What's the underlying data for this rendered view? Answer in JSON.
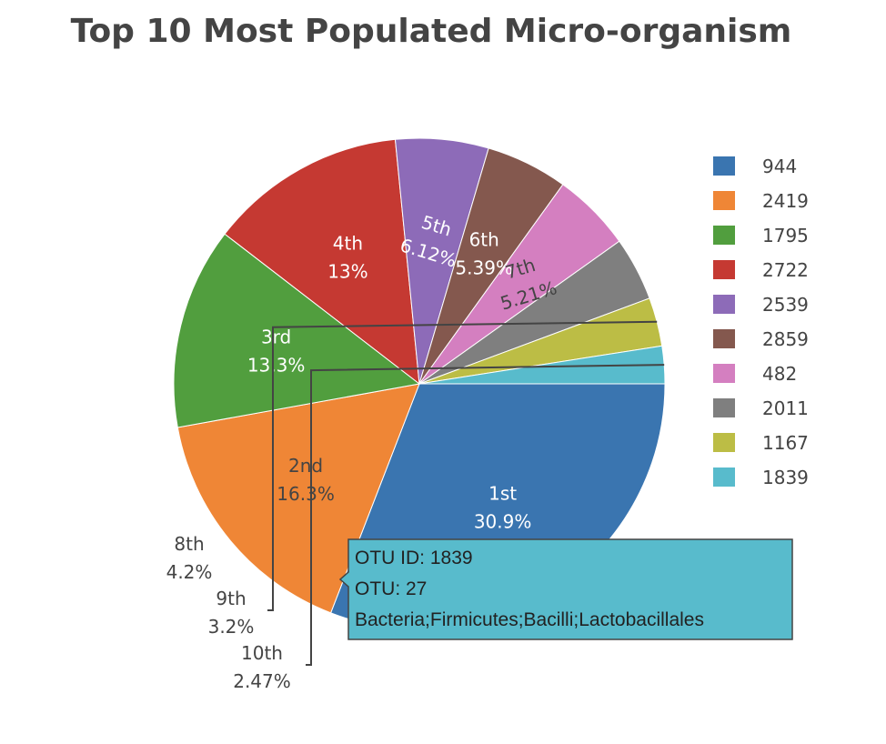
{
  "title": "Top 10 Most Populated Micro-organism",
  "chart_data": {
    "type": "pie",
    "title": "Top 10 Most Populated Micro-organism",
    "legend_position": "right",
    "slices": [
      {
        "legend": "944",
        "label": "1st",
        "percent": "30.9%",
        "value": 30.9,
        "color": "#3a75b0"
      },
      {
        "legend": "2419",
        "label": "2nd",
        "percent": "16.3%",
        "value": 16.3,
        "color": "#ef8636"
      },
      {
        "legend": "1795",
        "label": "3rd",
        "percent": "13.3%",
        "value": 13.3,
        "color": "#519e3e"
      },
      {
        "legend": "2722",
        "label": "4th",
        "percent": "13%",
        "value": 13.0,
        "color": "#c53932"
      },
      {
        "legend": "2539",
        "label": "5th",
        "percent": "6.12%",
        "value": 6.12,
        "color": "#8d6bb8"
      },
      {
        "legend": "2859",
        "label": "6th",
        "percent": "5.39%",
        "value": 5.39,
        "color": "#84584e"
      },
      {
        "legend": "482",
        "label": "7th",
        "percent": "5.21%",
        "value": 5.21,
        "color": "#d47fc0"
      },
      {
        "legend": "2011",
        "label": "8th",
        "percent": "4.2%",
        "value": 4.2,
        "color": "#7f7f7f"
      },
      {
        "legend": "1167",
        "label": "9th",
        "percent": "3.2%",
        "value": 3.2,
        "color": "#bcbd45"
      },
      {
        "legend": "1839",
        "label": "10th",
        "percent": "2.47%",
        "value": 2.47,
        "color": "#58bbcc"
      }
    ],
    "tooltip": {
      "slice": "10th",
      "lines": [
        "OTU ID: 1839",
        "OTU: 27",
        "Bacteria;Firmicutes;Bacilli;Lactobacillales"
      ]
    }
  }
}
